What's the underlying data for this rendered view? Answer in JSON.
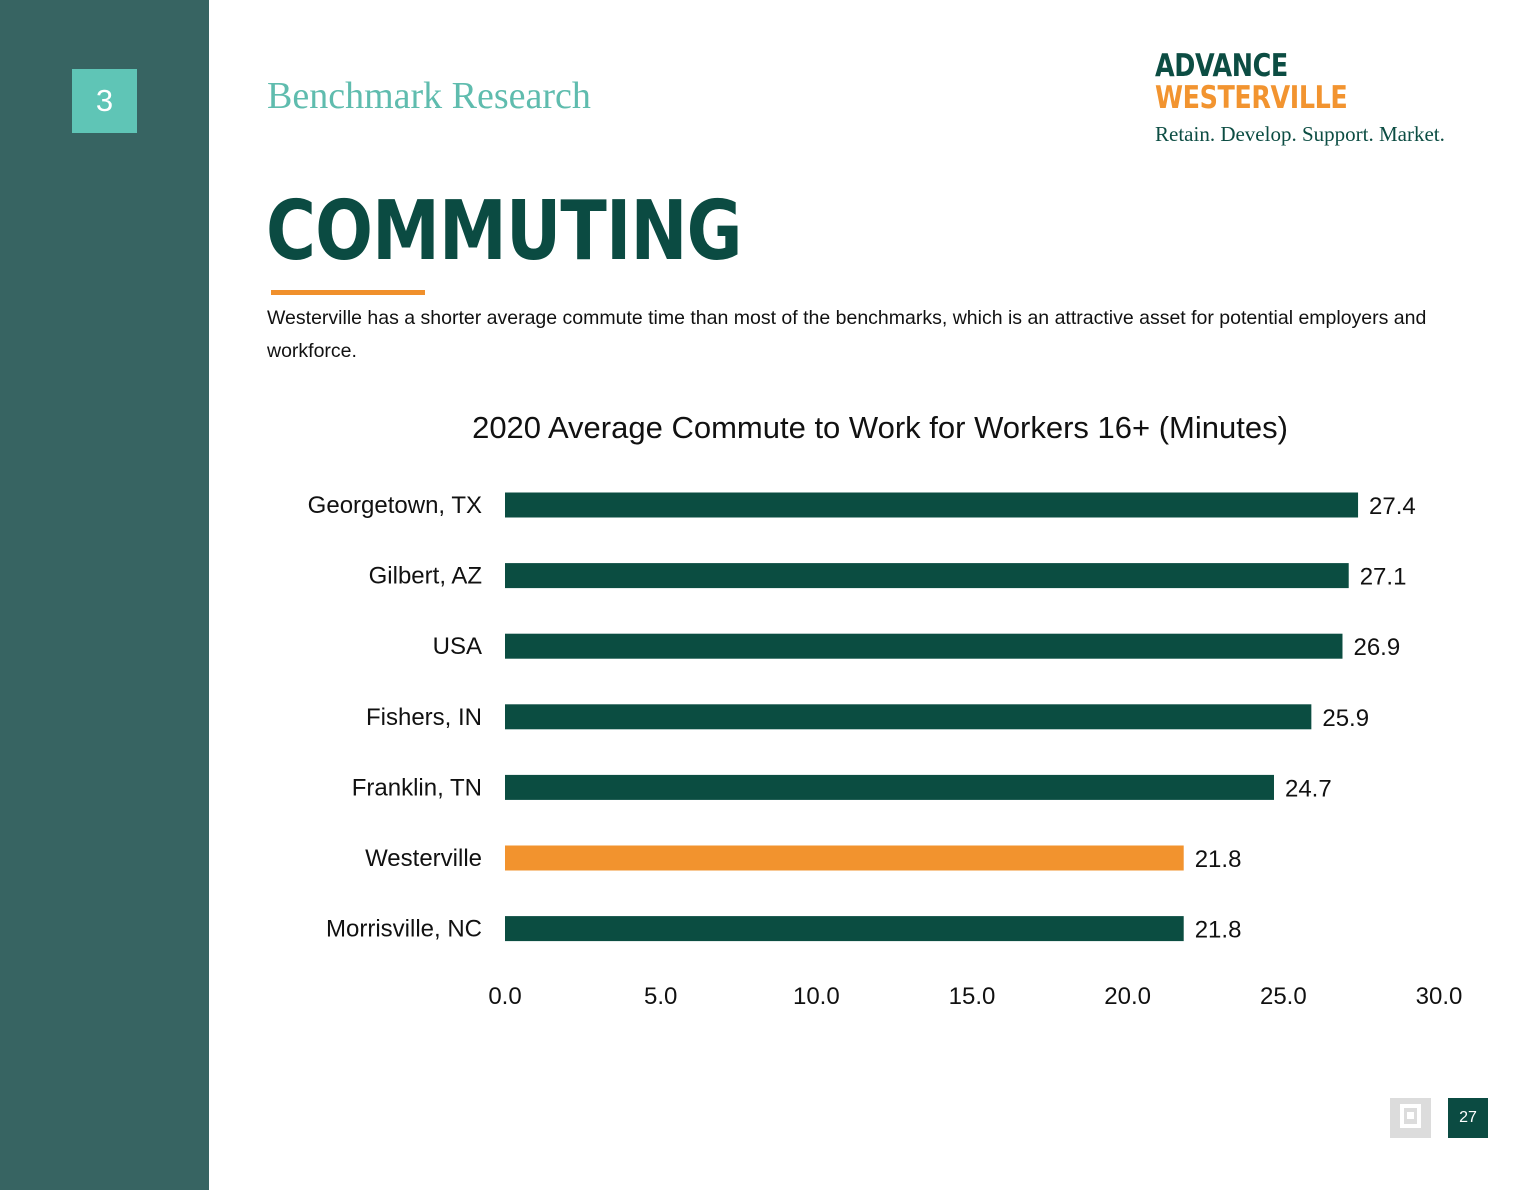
{
  "sidebar": {
    "section_number": "3"
  },
  "header": {
    "section_title": "Benchmark Research",
    "logo": {
      "line1": "ADVANCE",
      "line2": "WESTERVILLE",
      "tagline": "Retain. Develop. Support. Market."
    }
  },
  "page": {
    "heading": "COMMUTING",
    "intro": "Westerville has a shorter average commute time than most of the benchmarks, which is an attractive asset for potential employers and workforce."
  },
  "colors": {
    "bar": "#0b4d41",
    "highlight": "#f2932e",
    "accent": "#f0902c",
    "sidebar": "#376462"
  },
  "chart_data": {
    "type": "bar",
    "orientation": "horizontal",
    "title": "2020 Average Commute to Work for Workers 16+ (Minutes)",
    "categories": [
      "Georgetown, TX",
      "Gilbert, AZ",
      "USA",
      "Fishers, IN",
      "Franklin, TN",
      "Westerville",
      "Morrisville, NC"
    ],
    "values": [
      27.4,
      27.1,
      26.9,
      25.9,
      24.7,
      21.8,
      21.8
    ],
    "value_labels": [
      "27.4",
      "27.1",
      "26.9",
      "25.9",
      "24.7",
      "21.8",
      "21.8"
    ],
    "highlight_category": "Westerville",
    "xlim": [
      0,
      30
    ],
    "x_ticks": [
      "0.0",
      "5.0",
      "10.0",
      "15.0",
      "20.0",
      "25.0",
      "30.0"
    ],
    "grid": false,
    "legend": "none"
  },
  "footer": {
    "page_number": "27",
    "icon": "brand-square-icon"
  }
}
